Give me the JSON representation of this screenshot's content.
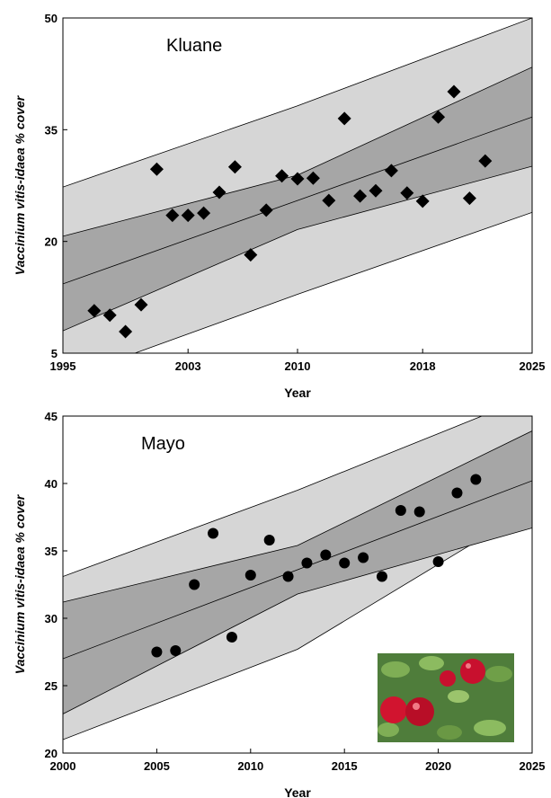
{
  "chart_data": [
    {
      "type": "scatter",
      "title": "Kluane",
      "x_label": "Year",
      "y_label": "Vaccinium vitis-idaea % cover",
      "xlim": [
        1995,
        2025
      ],
      "xticks": [
        1995,
        2003,
        2010,
        2018,
        2025
      ],
      "ylim": [
        5,
        50
      ],
      "yticks": [
        5,
        20,
        35,
        50
      ],
      "series": [
        {
          "marker": "diamond",
          "color": "#000000",
          "x": [
            1997,
            1998,
            1999,
            2000,
            2001,
            2002,
            2003,
            2004,
            2005,
            2006,
            2007,
            2008,
            2009,
            2010,
            2011,
            2012,
            2013,
            2014,
            2015,
            2016,
            2017,
            2018,
            2019,
            2020,
            2021,
            2022
          ],
          "values": [
            10.7,
            10.1,
            7.9,
            11.5,
            29.7,
            23.5,
            23.5,
            23.8,
            26.6,
            30.0,
            18.2,
            24.2,
            28.8,
            28.4,
            28.5,
            25.5,
            36.5,
            26.1,
            26.8,
            29.5,
            26.5,
            25.4,
            36.7,
            40.1,
            25.8,
            30.8
          ]
        }
      ],
      "fit": {
        "x": [
          1995,
          2010,
          2025
        ],
        "values": [
          14.3,
          25.5,
          36.7
        ]
      },
      "confidence_band": {
        "color": "#a6a6a6",
        "x": [
          1995,
          2010,
          2025
        ],
        "lower": [
          8.0,
          21.6,
          30.1
        ],
        "upper": [
          20.7,
          28.9,
          43.4
        ]
      },
      "prediction_band": {
        "color": "#d6d6d6",
        "x": [
          1995,
          2010,
          2025
        ],
        "lower": [
          1.5,
          12.9,
          23.9
        ],
        "upper": [
          27.3,
          38.2,
          50
        ]
      }
    },
    {
      "type": "scatter",
      "title": "Mayo",
      "x_label": "Year",
      "y_label": "Vaccinium vitis-idaea % cover",
      "xlim": [
        2000,
        2025
      ],
      "xticks": [
        2000,
        2005,
        2010,
        2015,
        2020,
        2025
      ],
      "ylim": [
        20,
        45
      ],
      "yticks": [
        20,
        25,
        30,
        35,
        40,
        45
      ],
      "series": [
        {
          "marker": "circle",
          "color": "#000000",
          "x": [
            2005,
            2006,
            2007,
            2008,
            2009,
            2010,
            2011,
            2012,
            2013,
            2014,
            2015,
            2016,
            2017,
            2018,
            2019,
            2020,
            2021,
            2022
          ],
          "values": [
            27.5,
            27.6,
            32.5,
            36.3,
            28.6,
            33.2,
            35.8,
            33.1,
            34.1,
            34.7,
            34.1,
            34.5,
            33.1,
            38.0,
            37.9,
            34.2,
            39.3,
            40.3
          ]
        }
      ],
      "fit": {
        "x": [
          2000,
          2012.5,
          2025
        ],
        "values": [
          27.0,
          33.6,
          40.2
        ]
      },
      "confidence_band": {
        "color": "#a6a6a6",
        "x": [
          2000,
          2012.5,
          2025
        ],
        "lower": [
          22.9,
          31.8,
          36.7
        ],
        "upper": [
          31.2,
          35.4,
          43.9
        ]
      },
      "prediction_band": {
        "color": "#d6d6d6",
        "x": [
          2000,
          2012.5,
          2025
        ],
        "lower": [
          21.0,
          27.7,
          38.2
        ],
        "upper": [
          33.1,
          39.5,
          46.5
        ]
      }
    }
  ]
}
